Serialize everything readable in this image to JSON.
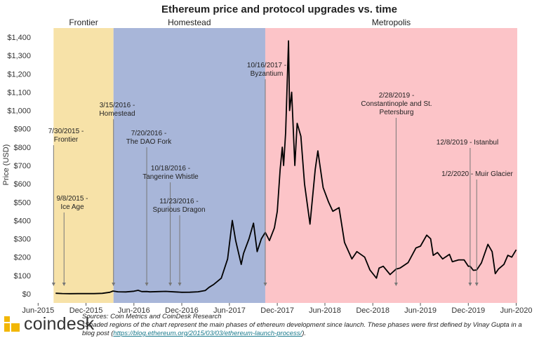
{
  "chart_data": {
    "type": "line",
    "title": "Ethereum price and protocol upgrades vs. time",
    "ylabel": "Price (USD)",
    "xlabel": "",
    "xlim": [
      "2015-05-15",
      "2020-06-05"
    ],
    "ylim": [
      -50,
      1450
    ],
    "x_ticks": [
      {
        "date": "2015-06-01",
        "label": "Jun-2015"
      },
      {
        "date": "2015-12-01",
        "label": "Dec-2015"
      },
      {
        "date": "2016-06-01",
        "label": "Jun-2016"
      },
      {
        "date": "2016-12-01",
        "label": "Dec-2016"
      },
      {
        "date": "2017-06-01",
        "label": "Jun-2017"
      },
      {
        "date": "2017-12-01",
        "label": "Dec-2017"
      },
      {
        "date": "2018-06-01",
        "label": "Jun-2018"
      },
      {
        "date": "2018-12-01",
        "label": "Dec-2018"
      },
      {
        "date": "2019-06-01",
        "label": "Jun-2019"
      },
      {
        "date": "2019-12-01",
        "label": "Dec-2019"
      },
      {
        "date": "2020-06-01",
        "label": "Jun-2020"
      }
    ],
    "y_ticks": [
      {
        "value": 0,
        "label": "$0"
      },
      {
        "value": 100,
        "label": "$100"
      },
      {
        "value": 200,
        "label": "$200"
      },
      {
        "value": 300,
        "label": "$300"
      },
      {
        "value": 400,
        "label": "$400"
      },
      {
        "value": 500,
        "label": "$500"
      },
      {
        "value": 600,
        "label": "$600"
      },
      {
        "value": 700,
        "label": "$700"
      },
      {
        "value": 800,
        "label": "$800"
      },
      {
        "value": 900,
        "label": "$900"
      },
      {
        "value": 1000,
        "label": "$1,000"
      },
      {
        "value": 1100,
        "label": "$1,100"
      },
      {
        "value": 1200,
        "label": "$1,200"
      },
      {
        "value": 1300,
        "label": "$1,300"
      },
      {
        "value": 1400,
        "label": "$1,400"
      }
    ],
    "phases": [
      {
        "name": "Frontier",
        "start": "2015-07-30",
        "end": "2016-03-15",
        "color": "#f7e2a8"
      },
      {
        "name": "Homestead",
        "start": "2016-03-15",
        "end": "2017-10-16",
        "color": "#a8b6d9"
      },
      {
        "name": "Metropolis",
        "start": "2017-10-16",
        "end": "2020-06-05",
        "color": "#fcc4c8"
      }
    ],
    "annotations": [
      {
        "date": "2015-07-30",
        "lines": [
          "7/30/2015 -",
          "Frontier"
        ]
      },
      {
        "date": "2015-09-08",
        "lines": [
          "9/8/2015 -",
          "Ice Age"
        ]
      },
      {
        "date": "2016-03-15",
        "lines": [
          "3/15/2016 -",
          "Homestead"
        ]
      },
      {
        "date": "2016-07-20",
        "lines": [
          "7/20/2016 -",
          "The DAO Fork"
        ]
      },
      {
        "date": "2016-10-18",
        "lines": [
          "10/18/2016 -",
          "Tangerine Whistle"
        ]
      },
      {
        "date": "2016-11-23",
        "lines": [
          "11/23/2016 -",
          "Spurious Dragon"
        ]
      },
      {
        "date": "2017-10-16",
        "lines": [
          "10/16/2017 -",
          "Byzantium"
        ]
      },
      {
        "date": "2019-02-28",
        "lines": [
          "2/28/2019 -",
          "Constantinople and St.",
          "Petersburg"
        ]
      },
      {
        "date": "2019-12-08",
        "lines": [
          "12/8/2019 - Istanbul"
        ]
      },
      {
        "date": "2020-01-02",
        "lines": [
          "1/2/2020 - Muir Glacier"
        ]
      }
    ],
    "series": [
      {
        "color": "#000000",
        "points": [
          [
            "2015-08-07",
            2.8
          ],
          [
            "2015-09-01",
            1.3
          ],
          [
            "2015-10-01",
            0.7
          ],
          [
            "2015-11-01",
            1.0
          ],
          [
            "2015-12-01",
            0.9
          ],
          [
            "2016-01-01",
            1.0
          ],
          [
            "2016-02-01",
            2.5
          ],
          [
            "2016-03-01",
            8.0
          ],
          [
            "2016-03-13",
            15.0
          ],
          [
            "2016-04-01",
            11.0
          ],
          [
            "2016-05-01",
            10.0
          ],
          [
            "2016-06-01",
            14.0
          ],
          [
            "2016-06-17",
            19.0
          ],
          [
            "2016-07-01",
            12.0
          ],
          [
            "2016-07-20",
            12.5
          ],
          [
            "2016-08-01",
            10.5
          ],
          [
            "2016-09-01",
            12.0
          ],
          [
            "2016-10-01",
            13.0
          ],
          [
            "2016-11-01",
            10.5
          ],
          [
            "2016-12-01",
            8.0
          ],
          [
            "2017-01-01",
            8.5
          ],
          [
            "2017-02-01",
            11.0
          ],
          [
            "2017-03-01",
            18.0
          ],
          [
            "2017-03-15",
            35.0
          ],
          [
            "2017-04-01",
            50.0
          ],
          [
            "2017-05-01",
            85.0
          ],
          [
            "2017-05-25",
            190.0
          ],
          [
            "2017-06-12",
            400.0
          ],
          [
            "2017-06-25",
            290.0
          ],
          [
            "2017-07-16",
            160.0
          ],
          [
            "2017-07-25",
            220.0
          ],
          [
            "2017-08-15",
            300.0
          ],
          [
            "2017-09-01",
            385.0
          ],
          [
            "2017-09-15",
            230.0
          ],
          [
            "2017-10-01",
            300.0
          ],
          [
            "2017-10-16",
            335.0
          ],
          [
            "2017-11-01",
            290.0
          ],
          [
            "2017-11-20",
            360.0
          ],
          [
            "2017-12-01",
            450.0
          ],
          [
            "2017-12-12",
            680.0
          ],
          [
            "2017-12-20",
            800.0
          ],
          [
            "2017-12-25",
            700.0
          ],
          [
            "2018-01-02",
            880.0
          ],
          [
            "2018-01-13",
            1380.0
          ],
          [
            "2018-01-17",
            1000.0
          ],
          [
            "2018-01-25",
            1100.0
          ],
          [
            "2018-02-06",
            700.0
          ],
          [
            "2018-02-15",
            930.0
          ],
          [
            "2018-03-01",
            860.0
          ],
          [
            "2018-03-15",
            600.0
          ],
          [
            "2018-04-05",
            380.0
          ],
          [
            "2018-04-25",
            680.0
          ],
          [
            "2018-05-05",
            780.0
          ],
          [
            "2018-05-25",
            580.0
          ],
          [
            "2018-06-15",
            500.0
          ],
          [
            "2018-07-01",
            450.0
          ],
          [
            "2018-07-25",
            470.0
          ],
          [
            "2018-08-15",
            280.0
          ],
          [
            "2018-09-12",
            190.0
          ],
          [
            "2018-10-01",
            230.0
          ],
          [
            "2018-10-31",
            200.0
          ],
          [
            "2018-11-20",
            130.0
          ],
          [
            "2018-12-15",
            85.0
          ],
          [
            "2018-12-25",
            140.0
          ],
          [
            "2019-01-10",
            150.0
          ],
          [
            "2019-02-05",
            105.0
          ],
          [
            "2019-02-28",
            135.0
          ],
          [
            "2019-03-15",
            140.0
          ],
          [
            "2019-04-15",
            170.0
          ],
          [
            "2019-05-15",
            250.0
          ],
          [
            "2019-06-01",
            260.0
          ],
          [
            "2019-06-25",
            320.0
          ],
          [
            "2019-07-10",
            300.0
          ],
          [
            "2019-07-20",
            210.0
          ],
          [
            "2019-08-05",
            225.0
          ],
          [
            "2019-08-25",
            190.0
          ],
          [
            "2019-09-20",
            215.0
          ],
          [
            "2019-10-01",
            175.0
          ],
          [
            "2019-10-25",
            185.0
          ],
          [
            "2019-11-15",
            185.0
          ],
          [
            "2019-12-01",
            150.0
          ],
          [
            "2019-12-08",
            150.0
          ],
          [
            "2019-12-20",
            128.0
          ],
          [
            "2020-01-02",
            130.0
          ],
          [
            "2020-01-20",
            168.0
          ],
          [
            "2020-02-14",
            270.0
          ],
          [
            "2020-03-01",
            230.0
          ],
          [
            "2020-03-13",
            110.0
          ],
          [
            "2020-03-25",
            135.0
          ],
          [
            "2020-04-15",
            160.0
          ],
          [
            "2020-04-30",
            210.0
          ],
          [
            "2020-05-15",
            200.0
          ],
          [
            "2020-06-01",
            240.0
          ]
        ]
      }
    ]
  },
  "footer": {
    "logo_text": "coindesk",
    "sources": "Sources: Coin Metrics and CoinDesk Research",
    "note_prefix": "*Shaded regions of the chart represent the main phases of ethereum development since launch. These phases were first defined by Vinay Gupta in a blog post (",
    "note_link": "https://blog.ethereum.org/2015/03/03/ethereum-launch-process/",
    "note_suffix": ")."
  }
}
